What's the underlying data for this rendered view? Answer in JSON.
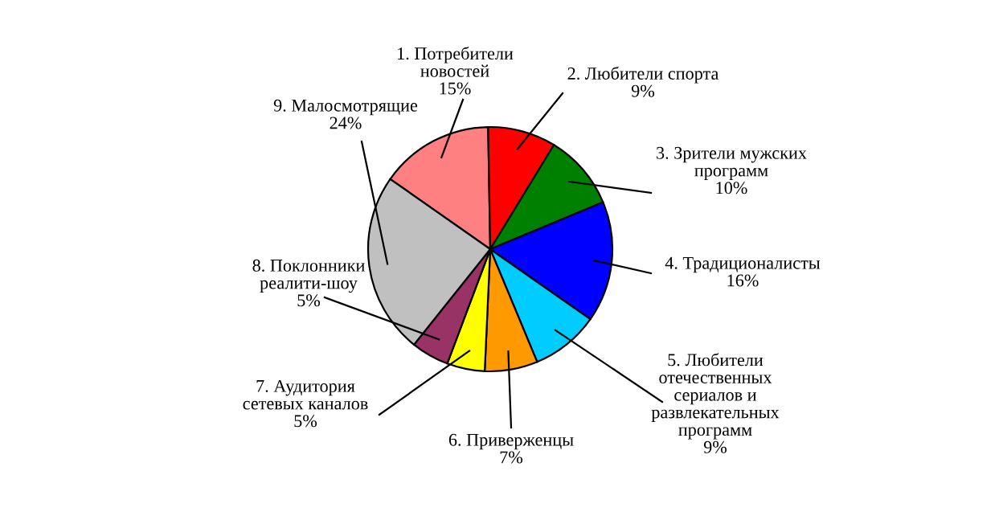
{
  "chart_data": {
    "type": "pie",
    "categories": [
      "1. Потребители\nновостей",
      "2. Любители спорта",
      "3. Зрители мужских\nпрограмм",
      "4. Традиционалисты",
      "5. Любители\nотечественных\nсериалов и\nразвлекательных\nпрограмм",
      "6. Приверженцы",
      "7. Аудитория\nсетевых каналов",
      "8. Поклонники\nреалити-шоу",
      "9. Малосмотрящие"
    ],
    "values": [
      15,
      9,
      10,
      16,
      9,
      7,
      5,
      5,
      24
    ],
    "value_labels": [
      "15%",
      "9%",
      "10%",
      "16%",
      "9%",
      "7%",
      "5%",
      "5%",
      "24%"
    ],
    "colors": [
      "#ff8080",
      "#ff0000",
      "#008000",
      "#0000ff",
      "#00ccff",
      "#ff9900",
      "#ffff00",
      "#993366",
      "#c0c0c0"
    ]
  }
}
